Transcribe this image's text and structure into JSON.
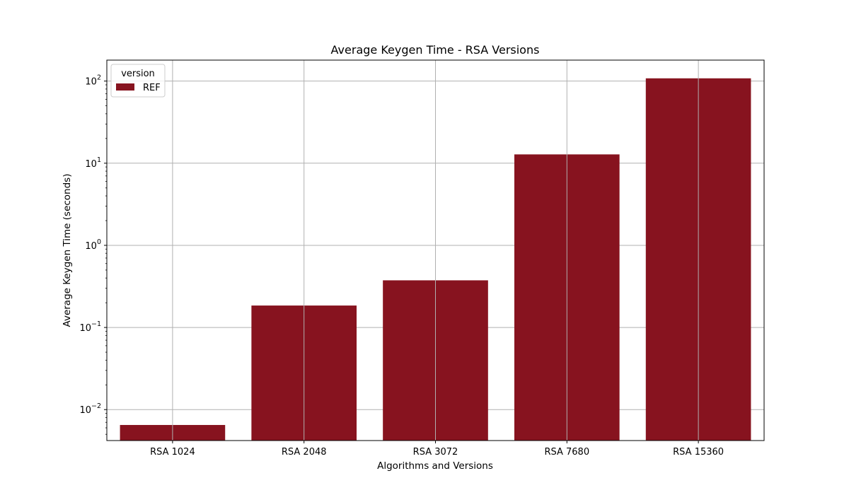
{
  "chart_data": {
    "type": "bar",
    "title": "Average Keygen Time - RSA Versions",
    "xlabel": "Algorithms and Versions",
    "ylabel": "Average Keygen Time (seconds)",
    "y_scale": "log",
    "ylim": [
      0.0042,
      180
    ],
    "y_ticks": [
      {
        "base": "10",
        "exp": "−2",
        "value": 0.01
      },
      {
        "base": "10",
        "exp": "−1",
        "value": 0.1
      },
      {
        "base": "10",
        "exp": "0",
        "value": 1
      },
      {
        "base": "10",
        "exp": "1",
        "value": 10
      },
      {
        "base": "10",
        "exp": "2",
        "value": 100
      }
    ],
    "categories": [
      "RSA 1024",
      "RSA 2048",
      "RSA 3072",
      "RSA 7680",
      "RSA 15360"
    ],
    "series": [
      {
        "name": "REF",
        "color": "#87131f",
        "values": [
          0.0065,
          0.185,
          0.375,
          12.8,
          108
        ]
      }
    ],
    "legend": {
      "title": "version",
      "position": "top-left"
    },
    "grid": true
  }
}
